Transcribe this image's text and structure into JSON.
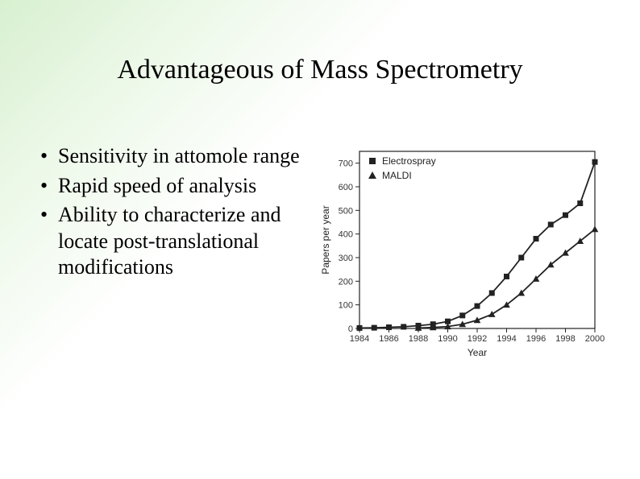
{
  "title": "Advantageous of Mass Spectrometry",
  "bullets": [
    "Sensitivity in attomole range",
    "Rapid speed of analysis",
    "Ability to characterize and locate post-translational modifications"
  ],
  "chart": {
    "type": "line",
    "title": "",
    "xlabel": "Year",
    "ylabel": "Papers per year",
    "xlim": [
      1984,
      2000
    ],
    "ylim": [
      0,
      750
    ],
    "xtick_step": 2,
    "ytick_step": 100,
    "xticklabels": [
      "1984",
      "1986",
      "1988",
      "1990",
      "1992",
      "1994",
      "1996",
      "1998",
      "2000"
    ],
    "yticklabels": [
      "0",
      "100",
      "200",
      "300",
      "400",
      "500",
      "600",
      "700"
    ],
    "grid": false,
    "background_color": "#ffffff",
    "axis_color": "#222222",
    "tick_color": "#222222",
    "tick_fontsize": 11,
    "label_fontsize": 12,
    "line_width": 1.8,
    "marker_size": 7,
    "series": [
      {
        "name": "Electrospray",
        "marker": "square",
        "color": "#222222",
        "x": [
          1984,
          1985,
          1986,
          1987,
          1988,
          1989,
          1990,
          1991,
          1992,
          1993,
          1994,
          1995,
          1996,
          1997,
          1998,
          1999,
          2000
        ],
        "y": [
          2,
          3,
          5,
          7,
          12,
          18,
          30,
          55,
          95,
          150,
          220,
          300,
          380,
          440,
          480,
          530,
          705
        ]
      },
      {
        "name": "MALDI",
        "marker": "triangle",
        "color": "#222222",
        "x": [
          1988,
          1989,
          1990,
          1991,
          1992,
          1993,
          1994,
          1995,
          1996,
          1997,
          1998,
          1999,
          2000
        ],
        "y": [
          2,
          4,
          8,
          18,
          35,
          60,
          100,
          150,
          210,
          270,
          320,
          370,
          420
        ]
      }
    ],
    "legend": {
      "position": "top-left-inside",
      "items": [
        "Electrospray",
        "MALDI"
      ]
    }
  }
}
